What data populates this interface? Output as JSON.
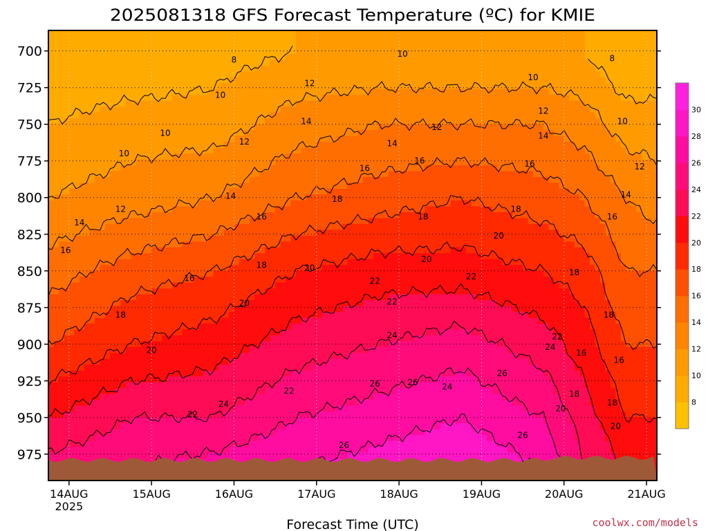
{
  "chart_data": {
    "type": "heatmap",
    "title": "2025081318 GFS Forecast Temperature (ºC) for KMIE",
    "xlabel": "Forecast Time (UTC)",
    "ylabel": "",
    "credit": "coolwx.com/models",
    "x_ticks": [
      "14AUG",
      "15AUG",
      "16AUG",
      "17AUG",
      "18AUG",
      "19AUG",
      "20AUG",
      "21AUG"
    ],
    "x_tick_year": "2025",
    "x_tick_hours": [
      6,
      30,
      54,
      78,
      102,
      126,
      150,
      174
    ],
    "xlim_hours": [
      0,
      177
    ],
    "y_ticks": [
      "700",
      "725",
      "750",
      "775",
      "800",
      "825",
      "850",
      "875",
      "900",
      "925",
      "950",
      "975"
    ],
    "y_tick_values": [
      700,
      725,
      750,
      775,
      800,
      825,
      850,
      875,
      900,
      925,
      950,
      975
    ],
    "ylim_hpa": [
      686,
      993
    ],
    "grid": true,
    "surface_color": "#9e5a38",
    "contour_interval": 2,
    "colorbar": {
      "labels": [
        "8",
        "10",
        "12",
        "14",
        "16",
        "18",
        "20",
        "22",
        "24",
        "26",
        "28",
        "30"
      ],
      "colors": [
        "#ffc000",
        "#ffab00",
        "#ff9a00",
        "#ff8500",
        "#ff6e00",
        "#ff4f00",
        "#ff2a00",
        "#ff0c0c",
        "#ff0c55",
        "#ff0c7a",
        "#ff0ca0",
        "#ff16c5",
        "#ff20e0"
      ]
    },
    "temperature_profile_hpa": [
      700,
      750,
      800,
      850,
      900,
      950,
      985
    ],
    "temperature_profile_times_hours": [
      0,
      24,
      48,
      72,
      96,
      120,
      144,
      156,
      168,
      177
    ],
    "temperature_profiles_c": [
      [
        8,
        10,
        12,
        15,
        18,
        22,
        25
      ],
      [
        8,
        11,
        13,
        17,
        20,
        24,
        26
      ],
      [
        9,
        11,
        14,
        18,
        21,
        24,
        27
      ],
      [
        10,
        13,
        16,
        20,
        23,
        26,
        28
      ],
      [
        10,
        14,
        17,
        21,
        24,
        27,
        29
      ],
      [
        10,
        14,
        18,
        21,
        25,
        28,
        30
      ],
      [
        10,
        14,
        17,
        20,
        23,
        26,
        28
      ],
      [
        10,
        13,
        16,
        19,
        21,
        23,
        24
      ],
      [
        8,
        11,
        14,
        16,
        18,
        20,
        22
      ],
      [
        8,
        11,
        13,
        16,
        18,
        20,
        21
      ]
    ],
    "contour_labels": [
      {
        "text": "8",
        "t": 54,
        "p": 706
      },
      {
        "text": "8",
        "t": 164,
        "p": 705
      },
      {
        "text": "10",
        "t": 103,
        "p": 702
      },
      {
        "text": "10",
        "t": 141,
        "p": 718
      },
      {
        "text": "10",
        "t": 50,
        "p": 730
      },
      {
        "text": "10",
        "t": 34,
        "p": 756
      },
      {
        "text": "10",
        "t": 22,
        "p": 770
      },
      {
        "text": "10",
        "t": 167,
        "p": 748
      },
      {
        "text": "12",
        "t": 76,
        "p": 722
      },
      {
        "text": "12",
        "t": 113,
        "p": 752
      },
      {
        "text": "12",
        "t": 144,
        "p": 741
      },
      {
        "text": "12",
        "t": 57,
        "p": 762
      },
      {
        "text": "12",
        "t": 172,
        "p": 779
      },
      {
        "text": "12",
        "t": 21,
        "p": 808
      },
      {
        "text": "14",
        "t": 75,
        "p": 748
      },
      {
        "text": "14",
        "t": 100,
        "p": 763
      },
      {
        "text": "14",
        "t": 144,
        "p": 758
      },
      {
        "text": "14",
        "t": 168,
        "p": 798
      },
      {
        "text": "14",
        "t": 53,
        "p": 799
      },
      {
        "text": "14",
        "t": 9,
        "p": 817
      },
      {
        "text": "16",
        "t": 92,
        "p": 780
      },
      {
        "text": "16",
        "t": 108,
        "p": 775
      },
      {
        "text": "16",
        "t": 140,
        "p": 777
      },
      {
        "text": "16",
        "t": 62,
        "p": 813
      },
      {
        "text": "16",
        "t": 5,
        "p": 836
      },
      {
        "text": "16",
        "t": 41,
        "p": 855
      },
      {
        "text": "16",
        "t": 164,
        "p": 813
      },
      {
        "text": "16",
        "t": 155,
        "p": 906
      },
      {
        "text": "16",
        "t": 166,
        "p": 911
      },
      {
        "text": "18",
        "t": 84,
        "p": 801
      },
      {
        "text": "18",
        "t": 109,
        "p": 813
      },
      {
        "text": "18",
        "t": 136,
        "p": 808
      },
      {
        "text": "18",
        "t": 62,
        "p": 846
      },
      {
        "text": "18",
        "t": 21,
        "p": 880
      },
      {
        "text": "18",
        "t": 153,
        "p": 851
      },
      {
        "text": "18",
        "t": 163,
        "p": 880
      },
      {
        "text": "18",
        "t": 153,
        "p": 934
      },
      {
        "text": "18",
        "t": 164,
        "p": 940
      },
      {
        "text": "20",
        "t": 76,
        "p": 848
      },
      {
        "text": "20",
        "t": 110,
        "p": 842
      },
      {
        "text": "20",
        "t": 131,
        "p": 826
      },
      {
        "text": "20",
        "t": 57,
        "p": 872
      },
      {
        "text": "20",
        "t": 30,
        "p": 904
      },
      {
        "text": "20",
        "t": 149,
        "p": 944
      },
      {
        "text": "20",
        "t": 165,
        "p": 956
      },
      {
        "text": "22",
        "t": 95,
        "p": 857
      },
      {
        "text": "22",
        "t": 123,
        "p": 854
      },
      {
        "text": "22",
        "t": 100,
        "p": 871
      },
      {
        "text": "22",
        "t": 148,
        "p": 895
      },
      {
        "text": "22",
        "t": 70,
        "p": 932
      },
      {
        "text": "22",
        "t": 42,
        "p": 948
      },
      {
        "text": "24",
        "t": 100,
        "p": 894
      },
      {
        "text": "24",
        "t": 146,
        "p": 902
      },
      {
        "text": "24",
        "t": 116,
        "p": 929
      },
      {
        "text": "24",
        "t": 51,
        "p": 941
      },
      {
        "text": "26",
        "t": 132,
        "p": 920
      },
      {
        "text": "26",
        "t": 95,
        "p": 927
      },
      {
        "text": "26",
        "t": 106,
        "p": 926
      },
      {
        "text": "26",
        "t": 86,
        "p": 969
      },
      {
        "text": "26",
        "t": 138,
        "p": 962
      }
    ]
  }
}
